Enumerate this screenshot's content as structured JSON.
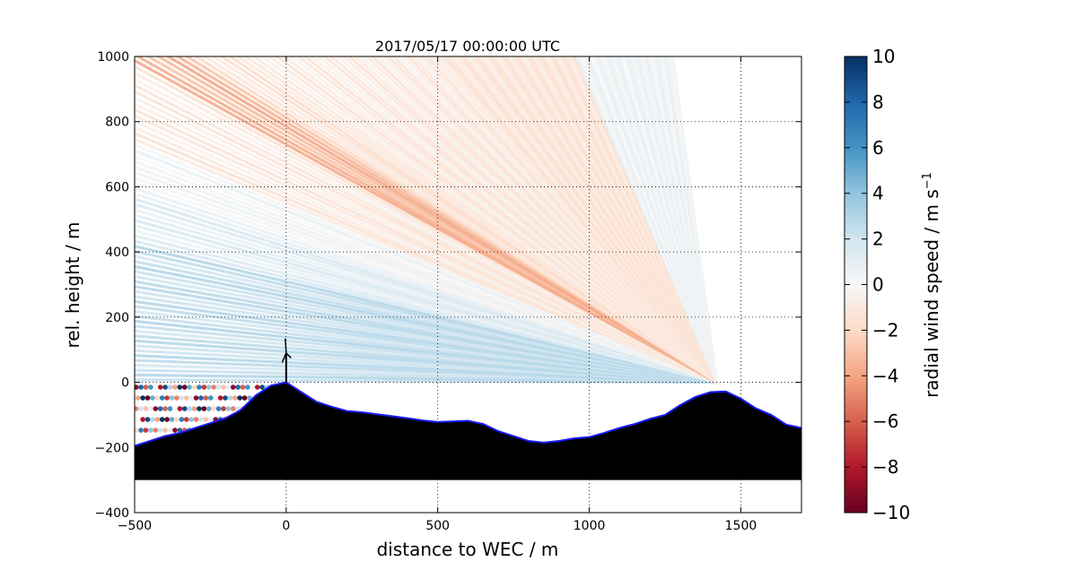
{
  "chart_data": {
    "type": "scatter",
    "title": "2017/05/17 00:00:00 UTC",
    "xlabel": "distance to WEC / m",
    "ylabel": "rel. height / m",
    "xlim": [
      -500,
      1700
    ],
    "ylim": [
      -400,
      1000
    ],
    "xticks": [
      "−500",
      "0",
      "500",
      "1000",
      "1500"
    ],
    "yticks": [
      "−400",
      "−200",
      "0",
      "200",
      "400",
      "600",
      "800",
      "1000"
    ],
    "xtick_values": [
      -500,
      0,
      500,
      1000,
      1500
    ],
    "ytick_values": [
      -400,
      -200,
      0,
      200,
      400,
      600,
      800,
      1000
    ],
    "grid": true,
    "colormap": "RdBu",
    "colorbar": {
      "label": "radial wind speed / m s",
      "label_superscript": "−1",
      "min": -10,
      "max": 10,
      "ticks": [
        "−10",
        "−8",
        "−6",
        "−4",
        "−2",
        "0",
        "2",
        "4",
        "6",
        "8",
        "10"
      ],
      "tick_values": [
        -10,
        -8,
        -6,
        -4,
        -2,
        0,
        2,
        4,
        6,
        8,
        10
      ]
    },
    "lidar_position": [
      1420,
      0
    ],
    "turbine": {
      "x": 0,
      "hub_height": 90,
      "blade_length": 45
    },
    "terrain": {
      "x": [
        -500,
        -450,
        -400,
        -350,
        -300,
        -250,
        -200,
        -150,
        -100,
        -50,
        0,
        50,
        100,
        150,
        200,
        250,
        300,
        350,
        400,
        450,
        500,
        550,
        600,
        650,
        700,
        750,
        800,
        850,
        900,
        950,
        1000,
        1050,
        1100,
        1150,
        1200,
        1250,
        1300,
        1350,
        1400,
        1450,
        1500,
        1550,
        1600,
        1650,
        1700
      ],
      "y": [
        -195,
        -180,
        -165,
        -155,
        -140,
        -125,
        -110,
        -85,
        -40,
        -10,
        0,
        -30,
        -60,
        -75,
        -88,
        -92,
        -98,
        -104,
        -110,
        -117,
        -122,
        -120,
        -118,
        -128,
        -150,
        -165,
        -180,
        -185,
        -180,
        -172,
        -168,
        -155,
        -140,
        -128,
        -112,
        -100,
        -70,
        -45,
        -30,
        -28,
        -50,
        -80,
        -100,
        -130,
        -140
      ]
    },
    "terrain_floor": -300,
    "scan_sectors": [
      {
        "elev_min": 0.0,
        "elev_max": 12.5,
        "value": 2.5
      },
      {
        "elev_min": 12.5,
        "elev_max": 17.0,
        "value": 1.2
      },
      {
        "elev_min": 17.0,
        "elev_max": 21.0,
        "value": 0.2
      },
      {
        "elev_min": 21.0,
        "elev_max": 27.0,
        "value": -1.0
      },
      {
        "elev_min": 27.0,
        "elev_max": 30.0,
        "value": -3.5
      },
      {
        "elev_min": 30.0,
        "elev_max": 33.0,
        "value": -1.5
      },
      {
        "elev_min": 33.0,
        "elev_max": 47.0,
        "value": -1.0
      },
      {
        "elev_min": 47.0,
        "elev_max": 65.0,
        "value": -1.3
      },
      {
        "elev_min": 65.0,
        "elev_max": 82.0,
        "value": 0.4
      }
    ],
    "near_ground_scatter_values": [
      -9,
      8,
      -6,
      6,
      0,
      -8,
      9,
      3,
      -4,
      10,
      -10,
      5,
      -2,
      7,
      -7,
      4,
      -5,
      2,
      -3,
      1
    ]
  }
}
